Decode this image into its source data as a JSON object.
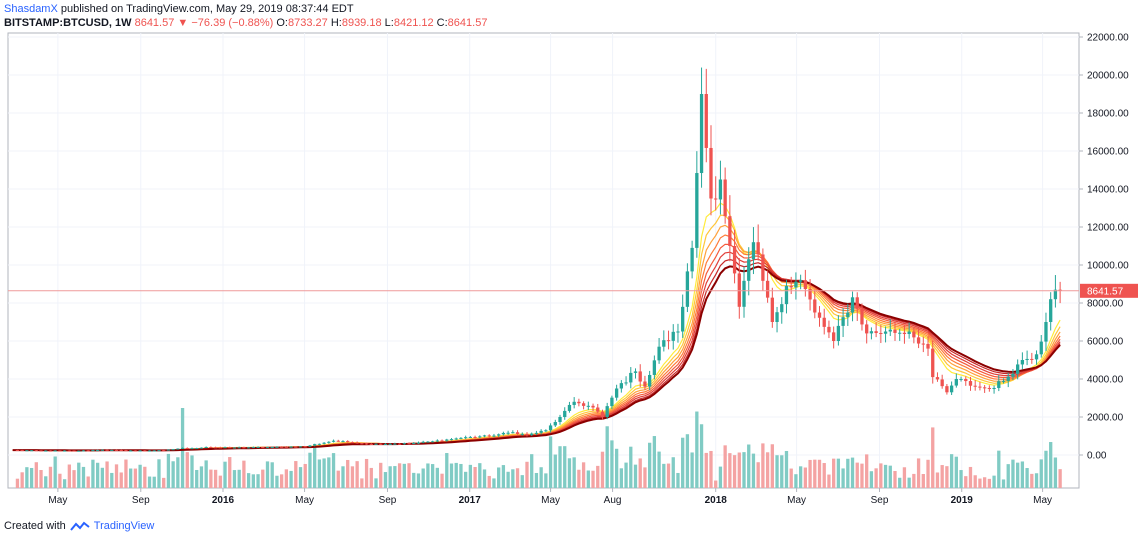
{
  "header": {
    "author": "ShasdamX",
    "published": "published on TradingView.com, May 29, 2019 08:37:44 EDT",
    "symbol": "BITSTAMP:BTCUSD, 1W",
    "last": "8641.57",
    "change": "−76.39 (−0.88%)",
    "o_label": "O:",
    "o": "8733.27",
    "h_label": "H:",
    "h": "8939.18",
    "l_label": "L:",
    "l": "8421.12",
    "c_label": "C:",
    "c": "8641.57"
  },
  "footer": {
    "created_with": "Created with",
    "brand": "TradingView"
  },
  "chart_data": {
    "type": "candlestick",
    "price_axis_labels": [
      "22000.00",
      "20000.00",
      "18000.00",
      "16000.00",
      "14000.00",
      "12000.00",
      "10000.00",
      "8000.00",
      "6000.00",
      "4000.00",
      "2000.00",
      "0.00"
    ],
    "price_levels": [
      22000,
      20000,
      18000,
      16000,
      14000,
      12000,
      10000,
      8000,
      6000,
      4000,
      2000,
      0
    ],
    "last_price": 8641.57,
    "last_price_label": "8641.57",
    "time_labels": [
      {
        "text": "May",
        "date": "2015-05-01",
        "bold": false
      },
      {
        "text": "Sep",
        "date": "2015-09-01",
        "bold": false
      },
      {
        "text": "2016",
        "date": "2016-01-01",
        "bold": true
      },
      {
        "text": "May",
        "date": "2016-05-01",
        "bold": false
      },
      {
        "text": "Sep",
        "date": "2016-09-01",
        "bold": false
      },
      {
        "text": "2017",
        "date": "2017-01-01",
        "bold": true
      },
      {
        "text": "May",
        "date": "2017-05-01",
        "bold": false
      },
      {
        "text": "Aug",
        "date": "2017-08-01",
        "bold": false
      },
      {
        "text": "2018",
        "date": "2018-01-01",
        "bold": true
      },
      {
        "text": "May",
        "date": "2018-05-01",
        "bold": false
      },
      {
        "text": "Sep",
        "date": "2018-09-01",
        "bold": false
      },
      {
        "text": "2019",
        "date": "2019-01-01",
        "bold": true
      },
      {
        "text": "May",
        "date": "2019-05-01",
        "bold": false
      }
    ],
    "weekly_closes": [
      {
        "date": "2015-02-23",
        "close": 260
      },
      {
        "date": "2015-04-06",
        "close": 230
      },
      {
        "date": "2015-06-01",
        "close": 225
      },
      {
        "date": "2015-07-06",
        "close": 275
      },
      {
        "date": "2015-08-24",
        "close": 230
      },
      {
        "date": "2015-10-05",
        "close": 245
      },
      {
        "date": "2015-11-02",
        "close": 370
      },
      {
        "date": "2015-11-09",
        "close": 330
      },
      {
        "date": "2015-12-07",
        "close": 420
      },
      {
        "date": "2016-01-11",
        "close": 390
      },
      {
        "date": "2016-03-07",
        "close": 415
      },
      {
        "date": "2016-05-02",
        "close": 450
      },
      {
        "date": "2016-06-13",
        "close": 750
      },
      {
        "date": "2016-07-11",
        "close": 660
      },
      {
        "date": "2016-08-08",
        "close": 580
      },
      {
        "date": "2016-10-03",
        "close": 610
      },
      {
        "date": "2016-11-07",
        "close": 720
      },
      {
        "date": "2016-12-19",
        "close": 900
      },
      {
        "date": "2017-01-02",
        "close": 950
      },
      {
        "date": "2017-01-30",
        "close": 1010
      },
      {
        "date": "2017-03-06",
        "close": 1200
      },
      {
        "date": "2017-03-27",
        "close": 1050
      },
      {
        "date": "2017-04-24",
        "close": 1300
      },
      {
        "date": "2017-05-15",
        "close": 2000
      },
      {
        "date": "2017-06-05",
        "close": 2800
      },
      {
        "date": "2017-07-03",
        "close": 2500
      },
      {
        "date": "2017-07-17",
        "close": 2000
      },
      {
        "date": "2017-08-07",
        "close": 3500
      },
      {
        "date": "2017-09-04",
        "close": 4400
      },
      {
        "date": "2017-09-18",
        "close": 3600
      },
      {
        "date": "2017-10-09",
        "close": 5700
      },
      {
        "date": "2017-11-06",
        "close": 6500
      },
      {
        "date": "2017-11-27",
        "close": 10900
      },
      {
        "date": "2017-12-11",
        "close": 19000
      },
      {
        "date": "2017-12-25",
        "close": 13500
      },
      {
        "date": "2018-01-08",
        "close": 14500
      },
      {
        "date": "2018-01-22",
        "close": 11000
      },
      {
        "date": "2018-02-05",
        "close": 7800
      },
      {
        "date": "2018-02-26",
        "close": 11200
      },
      {
        "date": "2018-03-26",
        "close": 7000
      },
      {
        "date": "2018-04-16",
        "close": 8900
      },
      {
        "date": "2018-05-07",
        "close": 9200
      },
      {
        "date": "2018-05-28",
        "close": 7500
      },
      {
        "date": "2018-06-25",
        "close": 6000
      },
      {
        "date": "2018-07-23",
        "close": 8300
      },
      {
        "date": "2018-08-13",
        "close": 6400
      },
      {
        "date": "2018-09-10",
        "close": 6500
      },
      {
        "date": "2018-10-15",
        "close": 6500
      },
      {
        "date": "2018-11-12",
        "close": 5600
      },
      {
        "date": "2018-11-19",
        "close": 4100
      },
      {
        "date": "2018-12-10",
        "close": 3300
      },
      {
        "date": "2018-12-24",
        "close": 4000
      },
      {
        "date": "2019-01-21",
        "close": 3600
      },
      {
        "date": "2019-02-11",
        "close": 3500
      },
      {
        "date": "2019-03-04",
        "close": 3900
      },
      {
        "date": "2019-04-01",
        "close": 5000
      },
      {
        "date": "2019-04-22",
        "close": 5300
      },
      {
        "date": "2019-05-06",
        "close": 7000
      },
      {
        "date": "2019-05-13",
        "close": 8200
      },
      {
        "date": "2019-05-20",
        "close": 8700
      },
      {
        "date": "2019-05-27",
        "close": 8641.57
      }
    ],
    "ribbon_colors": [
      "#ffeb3b",
      "#ffc63a",
      "#ffa03a",
      "#ff7b39",
      "#f45a3b",
      "#e03e38",
      "#c62828",
      "#8b0000"
    ],
    "up_color": "#26a69a",
    "down_color": "#ef5350",
    "up_volume_color": "#80cbc4",
    "down_volume_color": "#f4a3a3",
    "last_price_line_color": "#ef9a9a"
  }
}
